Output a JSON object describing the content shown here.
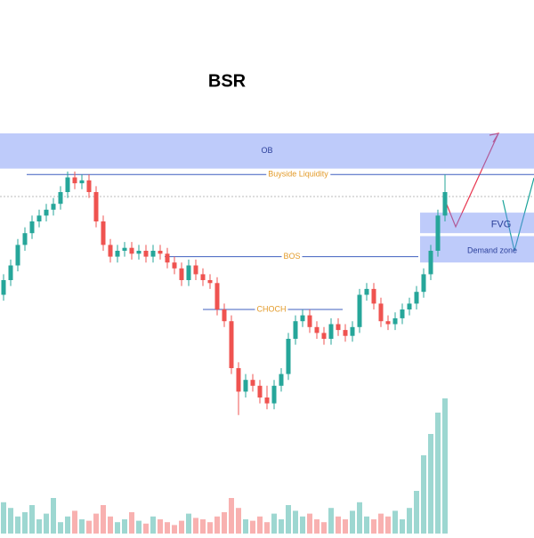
{
  "chart_data": {
    "type": "candlestick",
    "title": "BSR",
    "open": [
      45,
      50,
      55,
      62,
      66,
      70,
      72,
      74,
      76,
      80,
      85,
      83,
      84,
      80,
      70,
      62,
      58,
      60,
      61,
      59,
      60,
      58,
      60,
      59,
      56,
      54,
      50,
      55,
      52,
      50,
      49,
      40,
      36,
      20,
      12,
      16,
      14,
      10,
      8,
      14,
      18,
      30,
      36,
      38,
      34,
      32,
      30,
      35,
      33,
      31,
      34,
      45,
      47,
      42,
      36,
      35,
      37,
      40,
      42,
      46,
      52,
      60,
      72
    ],
    "close": [
      50,
      55,
      62,
      66,
      70,
      72,
      74,
      76,
      80,
      85,
      83,
      84,
      80,
      70,
      62,
      58,
      60,
      61,
      59,
      60,
      58,
      60,
      59,
      56,
      54,
      50,
      55,
      52,
      50,
      49,
      40,
      36,
      20,
      12,
      16,
      14,
      10,
      8,
      14,
      18,
      30,
      36,
      38,
      34,
      32,
      30,
      35,
      33,
      31,
      34,
      45,
      47,
      42,
      36,
      35,
      37,
      40,
      42,
      46,
      52,
      60,
      72,
      80
    ],
    "high": [
      52,
      57,
      64,
      68,
      72,
      74,
      76,
      78,
      82,
      87,
      87,
      86,
      86,
      82,
      72,
      64,
      62,
      63,
      63,
      62,
      62,
      62,
      62,
      61,
      58,
      56,
      57,
      57,
      54,
      52,
      51,
      42,
      38,
      22,
      18,
      18,
      16,
      14,
      16,
      20,
      32,
      38,
      40,
      40,
      36,
      34,
      37,
      37,
      35,
      36,
      47,
      49,
      49,
      44,
      38,
      39,
      42,
      44,
      48,
      54,
      62,
      74,
      86
    ],
    "low": [
      43,
      48,
      53,
      60,
      64,
      68,
      70,
      72,
      74,
      78,
      81,
      81,
      78,
      68,
      60,
      56,
      56,
      58,
      57,
      57,
      56,
      56,
      57,
      54,
      52,
      48,
      48,
      50,
      48,
      47,
      38,
      34,
      18,
      4,
      10,
      12,
      8,
      6,
      6,
      12,
      16,
      28,
      34,
      32,
      30,
      28,
      28,
      31,
      29,
      29,
      32,
      43,
      40,
      34,
      33,
      33,
      35,
      38,
      40,
      44,
      50,
      58,
      70
    ],
    "volume": [
      22,
      18,
      12,
      15,
      20,
      10,
      14,
      25,
      8,
      12,
      16,
      10,
      9,
      14,
      20,
      12,
      8,
      10,
      15,
      9,
      7,
      12,
      10,
      8,
      6,
      9,
      14,
      11,
      10,
      8,
      12,
      15,
      25,
      18,
      10,
      9,
      12,
      8,
      14,
      10,
      20,
      16,
      12,
      14,
      10,
      8,
      18,
      12,
      10,
      16,
      22,
      12,
      10,
      14,
      12,
      16,
      10,
      18,
      30,
      55,
      70,
      85,
      95
    ],
    "ylim": [
      0,
      100
    ],
    "volume_lim": [
      0,
      100
    ],
    "zones": [
      {
        "label": "OB",
        "top": 100,
        "bottom": 88
      },
      {
        "label": "FVG",
        "top": 73,
        "bottom": 66
      },
      {
        "label": "Demand zone",
        "top": 65,
        "bottom": 56
      }
    ],
    "levels": [
      {
        "label": "Buyside Liquidity",
        "value": 86
      },
      {
        "label": "BOS",
        "value": 58
      },
      {
        "label": "CHOCH",
        "value": 40
      }
    ]
  }
}
